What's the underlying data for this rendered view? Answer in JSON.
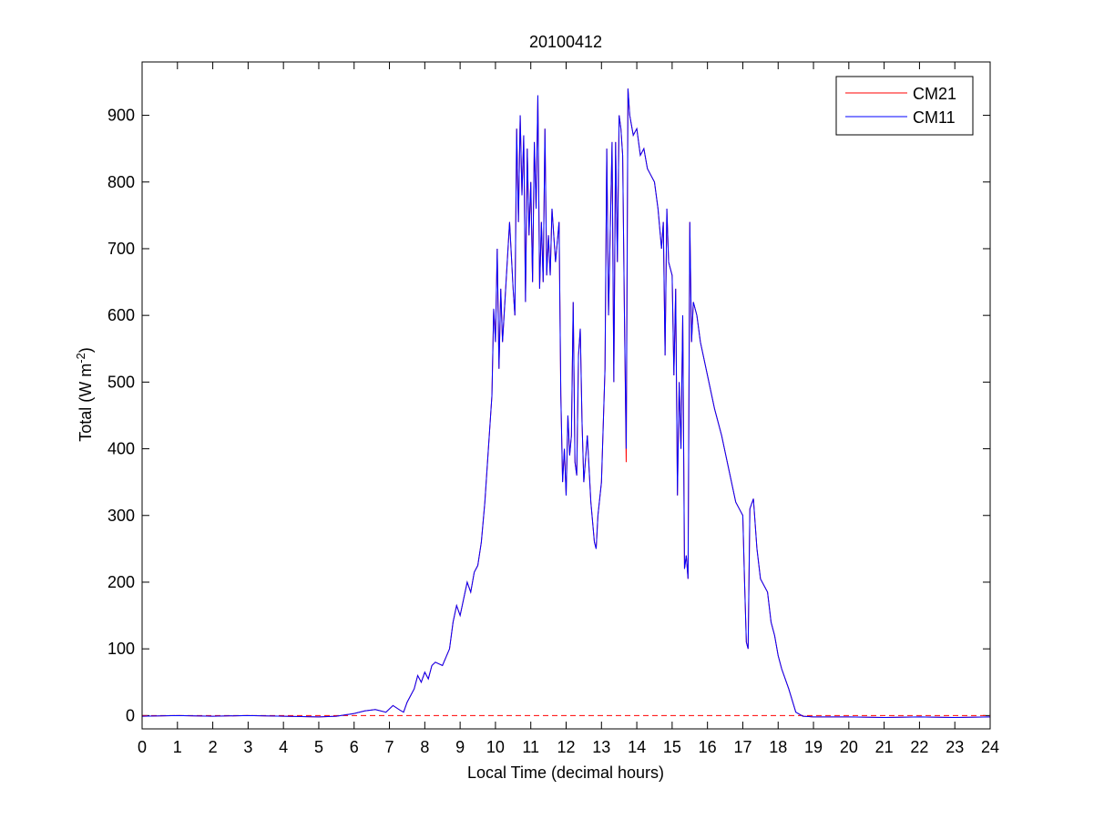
{
  "chart_data": {
    "type": "line",
    "title": "20100412",
    "xlabel": "Local Time (decimal hours)",
    "ylabel": {
      "text": "Total (W m",
      "superscript": "-2",
      "suffix": ")"
    },
    "xlim": [
      0,
      24
    ],
    "xticks": [
      0,
      1,
      2,
      3,
      4,
      5,
      6,
      7,
      8,
      9,
      10,
      11,
      12,
      13,
      14,
      15,
      16,
      17,
      18,
      19,
      20,
      21,
      22,
      23,
      24
    ],
    "ylim": [
      -20,
      980
    ],
    "yticks": [
      0,
      100,
      200,
      300,
      400,
      500,
      600,
      700,
      800,
      900
    ],
    "legend": "northeast",
    "reference_line": {
      "value": 0,
      "color": "#ff0000",
      "style": "dashed"
    },
    "x": [
      0,
      1,
      2,
      3,
      4,
      5,
      5.5,
      6,
      6.3,
      6.6,
      6.9,
      7.1,
      7.3,
      7.4,
      7.5,
      7.7,
      7.8,
      7.9,
      8.0,
      8.1,
      8.2,
      8.3,
      8.5,
      8.7,
      8.8,
      8.9,
      9.0,
      9.1,
      9.2,
      9.3,
      9.4,
      9.5,
      9.6,
      9.7,
      9.8,
      9.9,
      9.95,
      10.0,
      10.05,
      10.1,
      10.15,
      10.2,
      10.3,
      10.4,
      10.5,
      10.55,
      10.6,
      10.65,
      10.7,
      10.75,
      10.8,
      10.85,
      10.9,
      10.95,
      11.0,
      11.05,
      11.1,
      11.15,
      11.2,
      11.25,
      11.3,
      11.35,
      11.4,
      11.45,
      11.5,
      11.55,
      11.6,
      11.7,
      11.8,
      11.85,
      11.9,
      11.95,
      12.0,
      12.05,
      12.1,
      12.15,
      12.2,
      12.25,
      12.3,
      12.35,
      12.4,
      12.45,
      12.5,
      12.6,
      12.7,
      12.8,
      12.85,
      12.9,
      13.0,
      13.1,
      13.15,
      13.2,
      13.3,
      13.35,
      13.4,
      13.45,
      13.5,
      13.55,
      13.6,
      13.65,
      13.7,
      13.75,
      13.8,
      13.9,
      14.0,
      14.1,
      14.2,
      14.3,
      14.4,
      14.5,
      14.6,
      14.7,
      14.75,
      14.8,
      14.85,
      14.9,
      15.0,
      15.05,
      15.1,
      15.15,
      15.2,
      15.25,
      15.3,
      15.35,
      15.4,
      15.45,
      15.5,
      15.55,
      15.6,
      15.7,
      15.8,
      16.0,
      16.2,
      16.4,
      16.6,
      16.8,
      16.9,
      17.0,
      17.05,
      17.1,
      17.15,
      17.2,
      17.3,
      17.4,
      17.5,
      17.7,
      17.8,
      17.9,
      18.0,
      18.1,
      18.3,
      18.5,
      18.7,
      19,
      20,
      21,
      22,
      23,
      24
    ],
    "series": [
      {
        "name": "CM21",
        "color": "#ff0000",
        "values": [
          -1,
          0,
          -1,
          0,
          -1,
          -2,
          -1,
          3,
          7,
          9,
          5,
          15,
          8,
          5,
          20,
          40,
          60,
          50,
          65,
          55,
          75,
          80,
          75,
          100,
          140,
          165,
          150,
          175,
          200,
          185,
          215,
          225,
          260,
          320,
          400,
          480,
          610,
          560,
          700,
          520,
          640,
          560,
          650,
          740,
          640,
          600,
          880,
          740,
          900,
          780,
          870,
          620,
          850,
          720,
          800,
          650,
          860,
          760,
          930,
          640,
          740,
          650,
          880,
          660,
          720,
          660,
          760,
          680,
          740,
          480,
          350,
          400,
          330,
          450,
          390,
          420,
          620,
          380,
          360,
          540,
          580,
          440,
          350,
          420,
          320,
          260,
          250,
          300,
          350,
          520,
          850,
          600,
          860,
          500,
          860,
          680,
          900,
          880,
          840,
          600,
          380,
          940,
          900,
          870,
          880,
          840,
          850,
          820,
          810,
          800,
          760,
          700,
          740,
          540,
          760,
          680,
          660,
          510,
          640,
          330,
          500,
          400,
          600,
          220,
          240,
          205,
          740,
          560,
          620,
          600,
          560,
          510,
          460,
          420,
          370,
          320,
          310,
          300,
          200,
          110,
          100,
          310,
          325,
          250,
          205,
          185,
          140,
          120,
          90,
          70,
          40,
          5,
          -1,
          -2,
          -2,
          -3,
          -2,
          -3,
          -2
        ]
      },
      {
        "name": "CM11",
        "color": "#0000ff",
        "values": [
          -1,
          0,
          -1,
          0,
          -1,
          -2,
          -1,
          3,
          7,
          9,
          5,
          15,
          8,
          5,
          20,
          40,
          60,
          50,
          65,
          55,
          75,
          80,
          75,
          100,
          140,
          165,
          150,
          175,
          200,
          185,
          215,
          225,
          260,
          320,
          400,
          480,
          610,
          560,
          700,
          520,
          640,
          560,
          650,
          740,
          640,
          600,
          880,
          740,
          900,
          780,
          870,
          620,
          850,
          720,
          800,
          650,
          860,
          760,
          930,
          640,
          740,
          650,
          880,
          660,
          720,
          660,
          760,
          680,
          740,
          480,
          350,
          400,
          330,
          450,
          390,
          420,
          620,
          380,
          360,
          540,
          580,
          440,
          350,
          420,
          320,
          260,
          250,
          300,
          350,
          520,
          850,
          600,
          860,
          500,
          860,
          680,
          900,
          880,
          840,
          600,
          400,
          940,
          900,
          870,
          880,
          840,
          850,
          820,
          810,
          800,
          760,
          700,
          740,
          540,
          760,
          680,
          660,
          510,
          640,
          330,
          500,
          400,
          600,
          220,
          240,
          205,
          740,
          560,
          620,
          600,
          560,
          510,
          460,
          420,
          370,
          320,
          310,
          300,
          200,
          110,
          100,
          310,
          325,
          250,
          205,
          185,
          140,
          120,
          90,
          70,
          40,
          5,
          -1,
          -2,
          -2,
          -3,
          -2,
          -3,
          -2
        ]
      }
    ]
  }
}
